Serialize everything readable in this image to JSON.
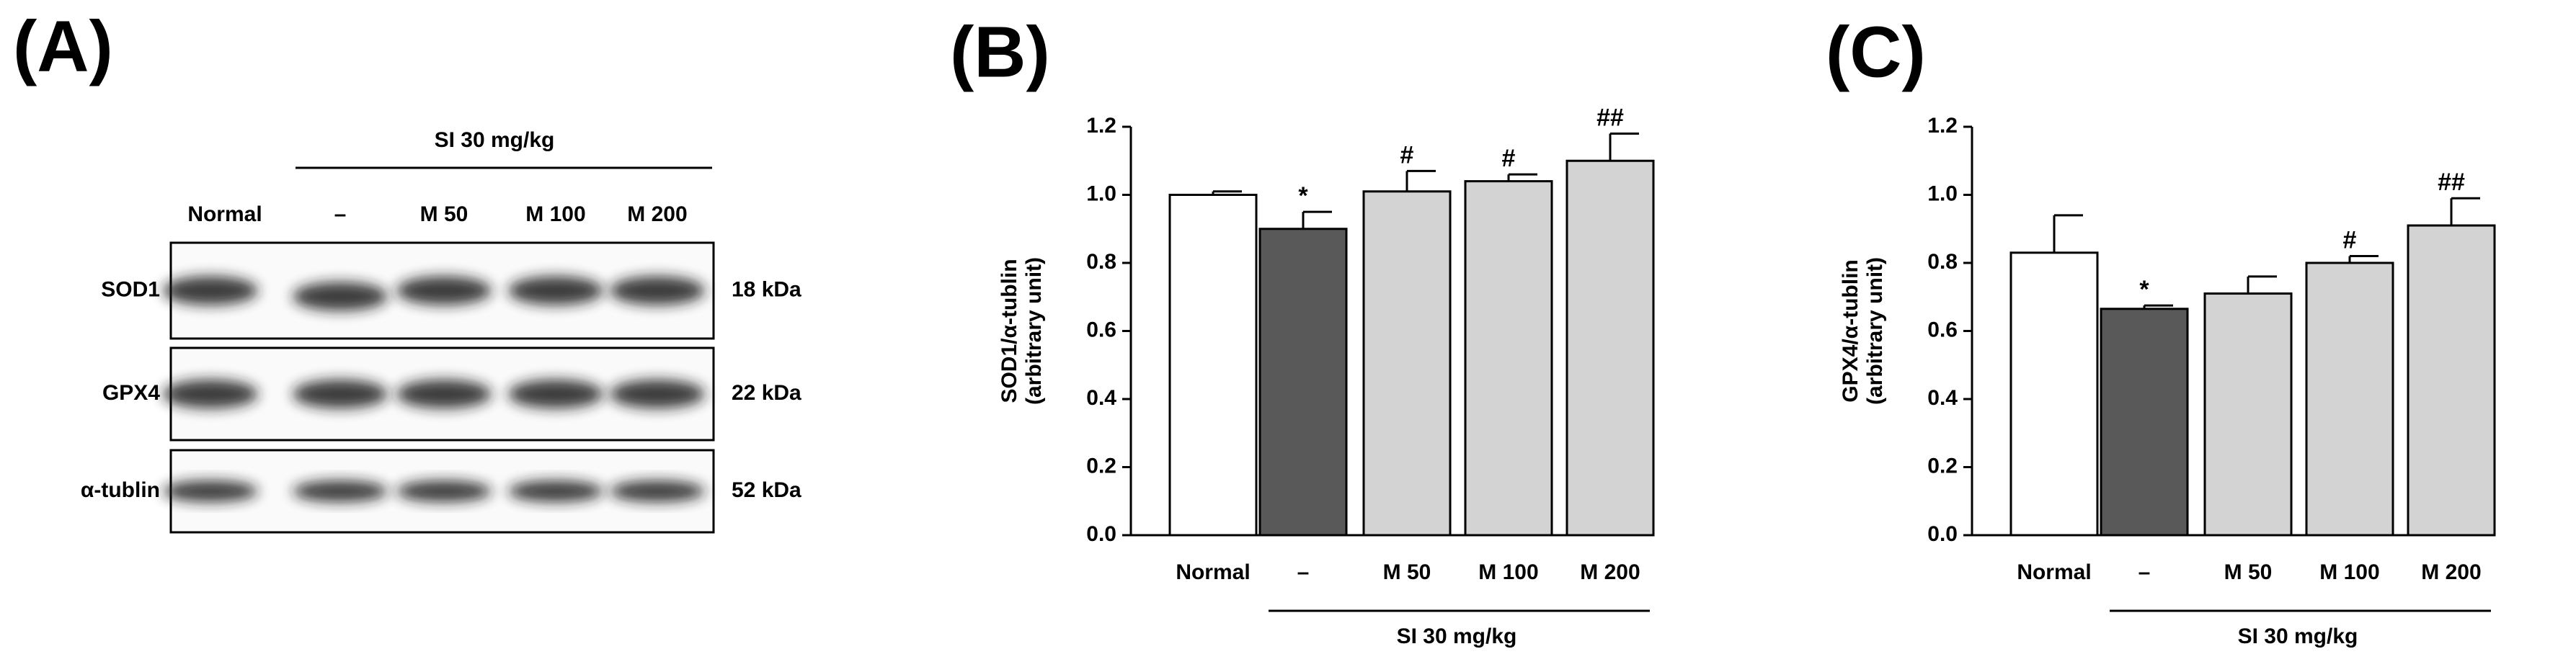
{
  "panel_labels": [
    "(A)",
    "(B)",
    "(C)"
  ],
  "blot": {
    "group_label": "SI 30 mg/kg",
    "lanes": [
      "Normal",
      "–",
      "M 50",
      "M 100",
      "M 200"
    ],
    "rows": [
      {
        "protein": "SOD1",
        "size": "18 kDa"
      },
      {
        "protein": "GPX4",
        "size": "22 kDa"
      },
      {
        "protein": "α-tublin",
        "size": "52 kDa"
      }
    ]
  },
  "chart_data": [
    {
      "type": "bar",
      "ylabel": [
        "SOD1/α-tublin",
        "(arbitrary unit)"
      ],
      "categories": [
        "Normal",
        "–",
        "M 50",
        "M 100",
        "M 200"
      ],
      "group_label": "SI 30 mg/kg",
      "values": [
        1.0,
        0.9,
        1.01,
        1.04,
        1.1
      ],
      "errors": [
        0.01,
        0.05,
        0.06,
        0.02,
        0.08
      ],
      "annotations": [
        null,
        "*",
        "#",
        "#",
        "##"
      ],
      "colors": [
        "#ffffff",
        "#595959",
        "#d3d3d3",
        "#d3d3d3",
        "#d3d3d3"
      ],
      "ylim": [
        0,
        1.2
      ],
      "yticks": [
        {
          "value": 0,
          "label": "0.0"
        },
        0.2,
        0.4,
        0.6,
        0.8,
        {
          "value": 1,
          "label": "1.0"
        },
        1.2
      ]
    },
    {
      "type": "bar",
      "ylabel": [
        "GPX4/α-tublin",
        "(arbitrary unit)"
      ],
      "categories": [
        "Normal",
        "–",
        "M 50",
        "M 100",
        "M 200"
      ],
      "group_label": "SI 30 mg/kg",
      "values": [
        0.83,
        0.665,
        0.71,
        0.8,
        0.91
      ],
      "errors": [
        0.11,
        0.01,
        0.05,
        0.02,
        0.08
      ],
      "annotations": [
        null,
        "*",
        null,
        "#",
        "##"
      ],
      "colors": [
        "#ffffff",
        "#595959",
        "#d3d3d3",
        "#d3d3d3",
        "#d3d3d3"
      ],
      "ylim": [
        0,
        1.2
      ],
      "yticks": [
        {
          "value": 0,
          "label": "0.0"
        },
        0.2,
        0.4,
        0.6,
        0.8,
        {
          "value": 1,
          "label": "1.0"
        },
        1.2
      ]
    }
  ]
}
